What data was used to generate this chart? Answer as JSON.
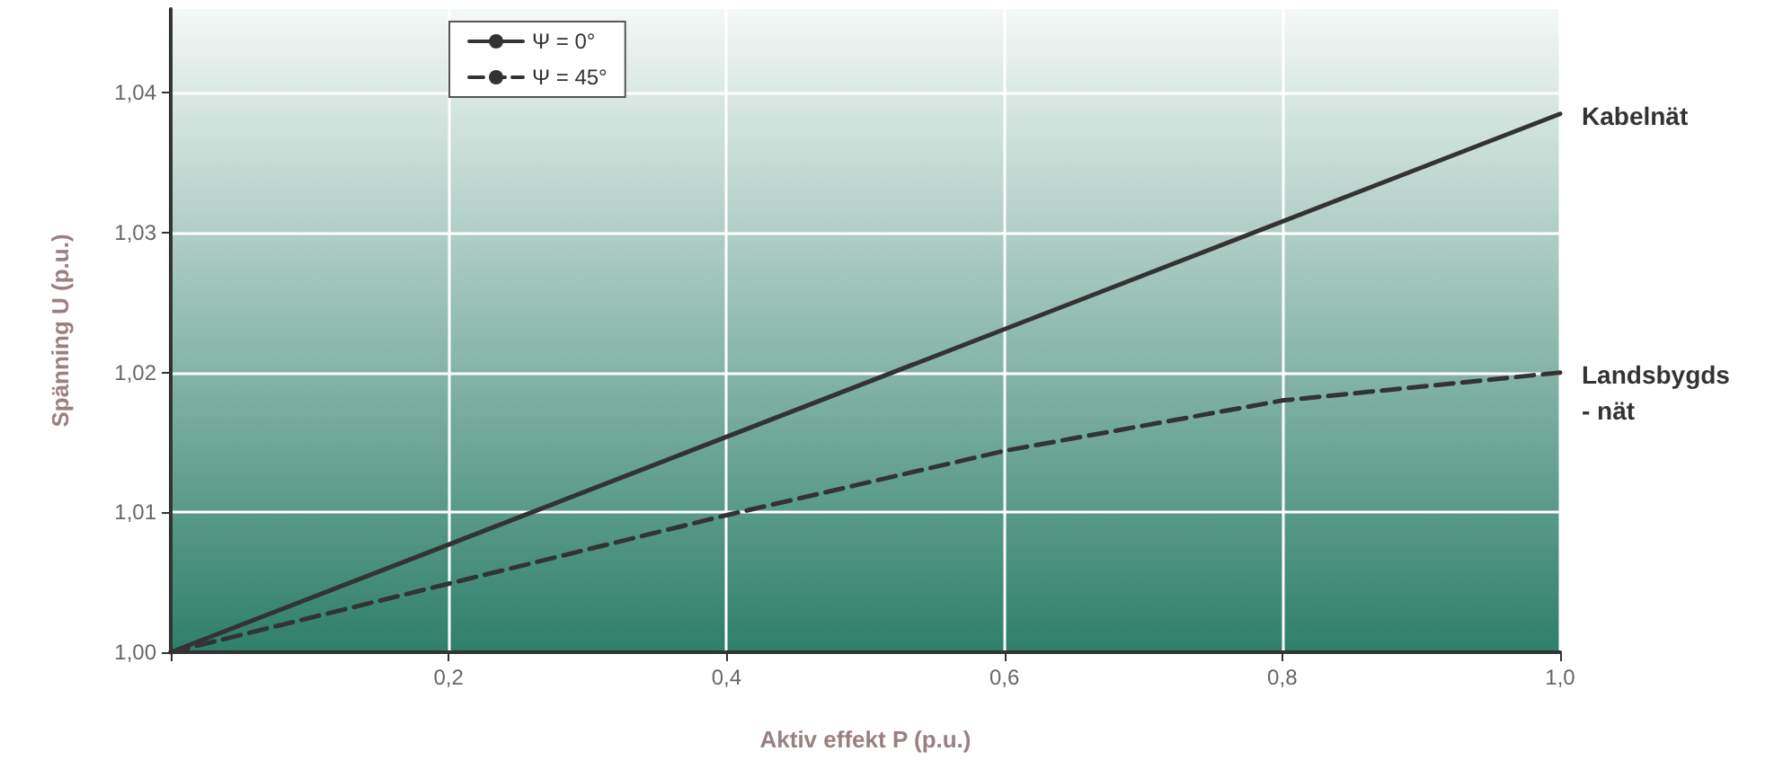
{
  "chart_data": {
    "type": "line",
    "xlabel": "Aktiv effekt P (p.u.)",
    "ylabel": "Spänning U (p.u.)",
    "series": [
      {
        "name": "Ψ = 0°",
        "color": "#333333",
        "line_style": "solid",
        "x": [
          0,
          1.0
        ],
        "values": [
          1.0,
          1.0385
        ]
      },
      {
        "name": "Ψ = 45°",
        "color": "#333333",
        "line_style": "dashed",
        "x": [
          0,
          0.2,
          0.4,
          0.6,
          0.8,
          1.0
        ],
        "values": [
          1.0,
          1.0049,
          1.0098,
          1.0144,
          1.018,
          1.02
        ]
      }
    ],
    "xlim": [
      0,
      1.0
    ],
    "xticks": [
      {
        "value": 0,
        "label": null
      },
      {
        "value": 0.2,
        "label": "0,2"
      },
      {
        "value": 0.4,
        "label": "0,4"
      },
      {
        "value": 0.6,
        "label": "0,6"
      },
      {
        "value": 0.8,
        "label": "0,8"
      },
      {
        "value": 1.0,
        "label": "1,0"
      }
    ],
    "ylim": [
      1.0,
      1.046
    ],
    "yticks": [
      {
        "value": 1.0,
        "label": "1,00"
      },
      {
        "value": 1.01,
        "label": "1,01"
      },
      {
        "value": 1.02,
        "label": "1,02"
      },
      {
        "value": 1.03,
        "label": "1,03"
      },
      {
        "value": 1.04,
        "label": "1,04"
      }
    ],
    "annotations": [
      {
        "text": "Kabelnät",
        "x": 1.0,
        "y": 1.0385
      },
      {
        "text": "Landsbygds\n- nät",
        "x": 1.0,
        "y": 1.02
      }
    ],
    "grid": true,
    "legend": "top left",
    "marker": "none"
  }
}
